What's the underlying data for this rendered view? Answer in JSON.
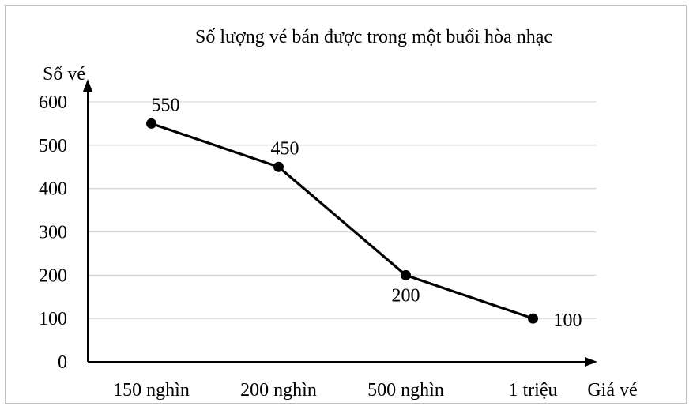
{
  "chart_data": {
    "type": "line",
    "title": "Số lượng vé bán được trong một buổi hòa nhạc",
    "xlabel": "Giá vé",
    "ylabel": "Số vé",
    "categories": [
      "150 nghìn",
      "200 nghìn",
      "500 nghìn",
      "1 triệu"
    ],
    "yticks": [
      "0",
      "100",
      "200",
      "300",
      "400",
      "500",
      "600"
    ],
    "ylim": [
      0,
      600
    ],
    "grid": true,
    "series": [
      {
        "values": [
          550,
          450,
          200,
          100
        ],
        "labels": [
          "550",
          "450",
          "200",
          "100"
        ],
        "color": "#000000"
      }
    ]
  }
}
